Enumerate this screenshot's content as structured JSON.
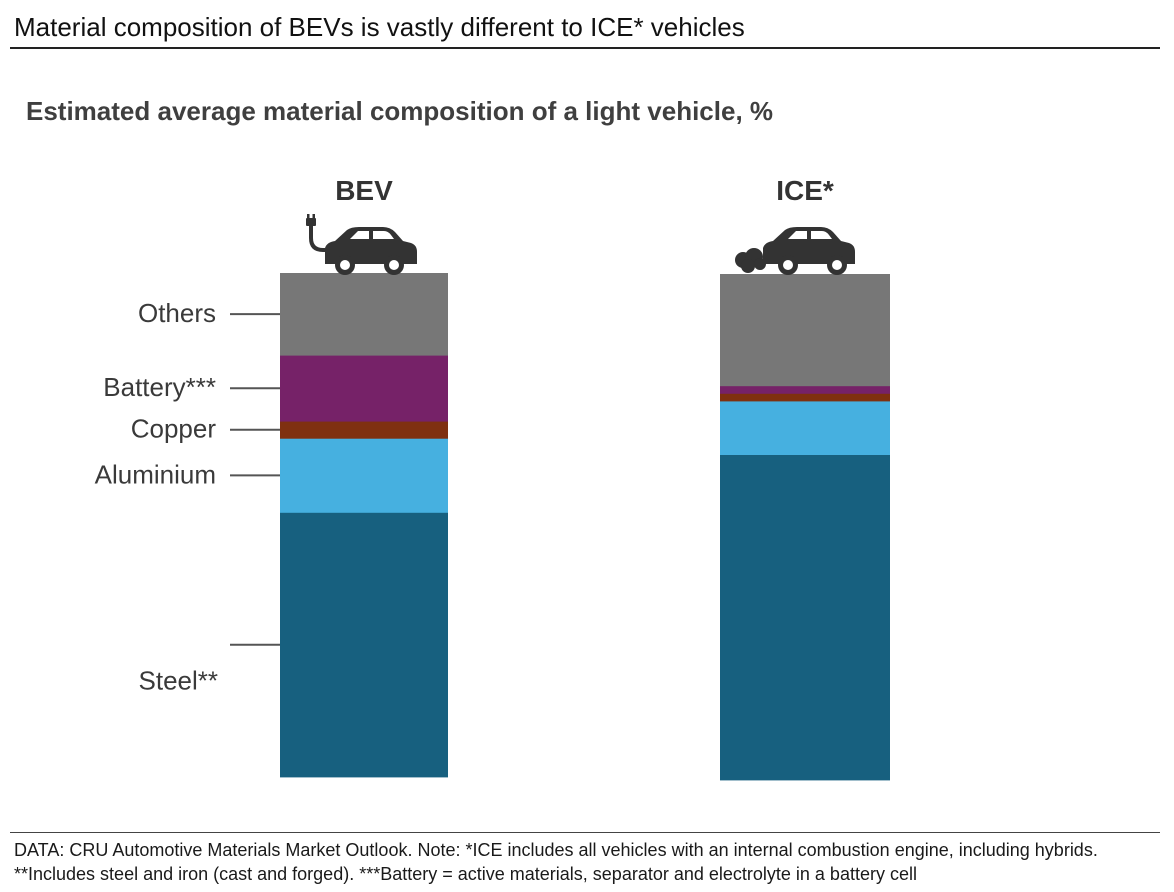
{
  "header": {
    "headline": "Material composition of BEVs is vastly different to ICE* vehicles",
    "subtitle": "Estimated average material composition of a light vehicle, %"
  },
  "chart_data": {
    "type": "stacked-bar",
    "categories": [
      "BEV",
      "ICE*"
    ],
    "stack_order_bottom_to_top": [
      "Steel**",
      "Aluminium",
      "Copper",
      "Battery***",
      "Others"
    ],
    "series": [
      {
        "name": "Steel**",
        "color": "#17607f",
        "values": [
          52.5,
          64.3
        ]
      },
      {
        "name": "Aluminium",
        "color": "#46b0e0",
        "values": [
          14.7,
          10.6
        ]
      },
      {
        "name": "Copper",
        "color": "#7f3010",
        "values": [
          3.4,
          1.5
        ]
      },
      {
        "name": "Battery***",
        "color": "#762268",
        "values": [
          13.1,
          1.5
        ]
      },
      {
        "name": "Others",
        "color": "#777777",
        "values": [
          16.3,
          22.1
        ]
      }
    ],
    "labels_side": "left of BEV bar",
    "ylim": [
      0,
      100
    ],
    "icons": [
      "electric-car-icon",
      "combustion-car-icon"
    ]
  },
  "footer": {
    "note": "DATA: CRU Automotive Materials Market Outlook. Note: *ICE includes all vehicles with an internal combustion engine, including hybrids. **Includes steel and iron (cast and forged). ***Battery = active materials, separator and electrolyte in a battery cell"
  }
}
